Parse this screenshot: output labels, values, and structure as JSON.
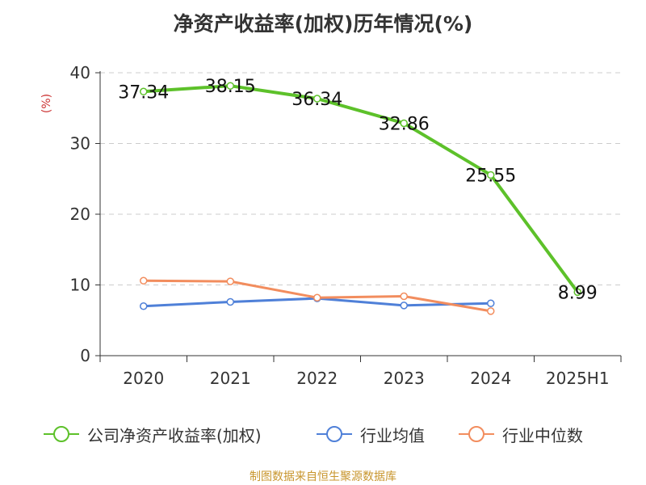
{
  "title": "净资产收益率(加权)历年情况(%)",
  "source": "制图数据来自恒生聚源数据库",
  "chart_data": {
    "type": "line",
    "title": "净资产收益率(加权)历年情况(%)",
    "ylabel": "(%)",
    "xlabel": "",
    "categories": [
      "2020",
      "2021",
      "2022",
      "2023",
      "2024",
      "2025H1"
    ],
    "ylim": [
      0,
      40
    ],
    "yticks": [
      0,
      10,
      20,
      30,
      40
    ],
    "grid": true,
    "legend_position": "bottom",
    "series": [
      {
        "name": "公司净资产收益率(加权)",
        "color": "#5dc12a",
        "values": [
          37.34,
          38.15,
          36.34,
          32.86,
          25.55,
          8.99
        ],
        "labels": [
          "37.34",
          "38.15",
          "36.34",
          "32.86",
          "25.55",
          "8.99"
        ],
        "show_labels": true
      },
      {
        "name": "行业均值",
        "color": "#4f80d8",
        "values": [
          7.0,
          7.6,
          8.1,
          7.1,
          7.4,
          null
        ],
        "show_labels": false
      },
      {
        "name": "行业中位数",
        "color": "#f28d5e",
        "values": [
          10.6,
          10.5,
          8.2,
          8.4,
          6.3,
          null
        ],
        "show_labels": false
      }
    ]
  }
}
